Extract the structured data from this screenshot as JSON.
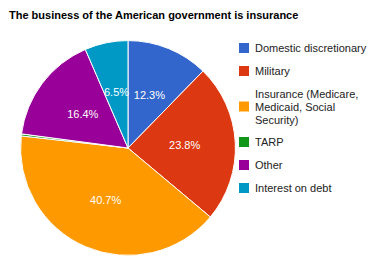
{
  "chart_data": {
    "type": "pie",
    "title": "The business of the American government is insurance",
    "categories": [
      "Domestic discretionary",
      "Military",
      "Insurance (Medicare, Medicaid, Social Security)",
      "TARP",
      "Other",
      "Interest on debt"
    ],
    "values": [
      12.3,
      23.8,
      40.7,
      0.3,
      16.4,
      6.5
    ],
    "value_labels": [
      "12.3%",
      "23.8%",
      "40.7%",
      null,
      "16.4%",
      "6.5%"
    ],
    "colors": [
      "#3366cc",
      "#dc3912",
      "#ff9900",
      "#109618",
      "#990099",
      "#0099c6"
    ],
    "data_labels": true,
    "legend": "top-right"
  }
}
